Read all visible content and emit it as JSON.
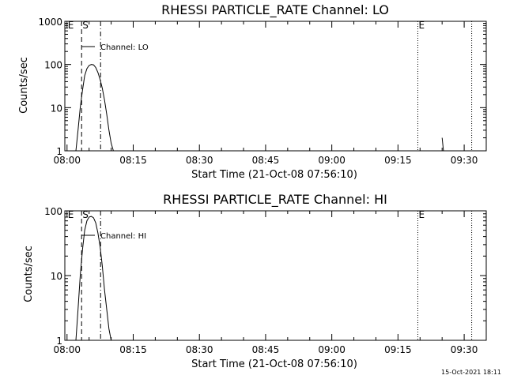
{
  "chart_data": [
    {
      "type": "line",
      "title": "RHESSI PARTICLE_RATE Channel: LO",
      "xlabel": "Start Time (21-Oct-08 07:56:10)",
      "ylabel": "Counts/sec",
      "yscale": "log",
      "ylim": [
        1,
        1000
      ],
      "y_ticks": [
        "1",
        "10",
        "100",
        "1000"
      ],
      "xlim_minutes": [
        -0.5,
        95.0
      ],
      "x_ticks": [
        {
          "label": "08:00",
          "minute": 0
        },
        {
          "label": "08:15",
          "minute": 15
        },
        {
          "label": "08:30",
          "minute": 30
        },
        {
          "label": "08:45",
          "minute": 45
        },
        {
          "label": "09:00",
          "minute": 60
        },
        {
          "label": "09:15",
          "minute": 75
        },
        {
          "label": "09:30",
          "minute": 90
        }
      ],
      "legend": {
        "label": "Channel: LO",
        "position": "top-left"
      },
      "markers": [
        {
          "label": "E",
          "minute": 0,
          "style": "solid"
        },
        {
          "label": "S",
          "minute": 3.3,
          "style": "dashed"
        },
        {
          "label": "",
          "minute": 7.6,
          "style": "dashdot"
        },
        {
          "label": "E",
          "minute": 79.5,
          "style": "dotted"
        },
        {
          "label": "",
          "minute": 91.7,
          "style": "dotted"
        }
      ],
      "series": [
        {
          "x": [
            2.0,
            2.5,
            3.0,
            3.5,
            4.0,
            4.5,
            5.0,
            5.5,
            6.0,
            6.5,
            7.0,
            7.5,
            8.0,
            8.5,
            9.0,
            9.5,
            10.0,
            10.5
          ],
          "y": [
            1,
            3,
            10,
            25,
            55,
            80,
            95,
            100,
            98,
            85,
            65,
            45,
            28,
            15,
            7,
            3,
            1.5,
            1
          ]
        },
        {
          "x": [
            85.0,
            85.3
          ],
          "y": [
            2,
            1
          ]
        }
      ]
    },
    {
      "type": "line",
      "title": "RHESSI PARTICLE_RATE Channel: HI",
      "xlabel": "Start Time (21-Oct-08 07:56:10)",
      "ylabel": "Counts/sec",
      "yscale": "log",
      "ylim": [
        1,
        100
      ],
      "y_ticks": [
        "1",
        "10",
        "100"
      ],
      "xlim_minutes": [
        -0.5,
        95.0
      ],
      "x_ticks": [
        {
          "label": "08:00",
          "minute": 0
        },
        {
          "label": "08:15",
          "minute": 15
        },
        {
          "label": "08:30",
          "minute": 30
        },
        {
          "label": "08:45",
          "minute": 45
        },
        {
          "label": "09:00",
          "minute": 60
        },
        {
          "label": "09:15",
          "minute": 75
        },
        {
          "label": "09:30",
          "minute": 90
        }
      ],
      "legend": {
        "label": "Channel: HI",
        "position": "top-left"
      },
      "markers": [
        {
          "label": "E",
          "minute": 0,
          "style": "solid"
        },
        {
          "label": "S",
          "minute": 3.3,
          "style": "dashed"
        },
        {
          "label": "",
          "minute": 7.6,
          "style": "dashdot"
        },
        {
          "label": "E",
          "minute": 79.5,
          "style": "dotted"
        },
        {
          "label": "",
          "minute": 91.7,
          "style": "dotted"
        }
      ],
      "series": [
        {
          "x": [
            2.0,
            2.5,
            3.0,
            3.5,
            4.0,
            4.5,
            5.0,
            5.5,
            6.0,
            6.5,
            7.0,
            7.5,
            8.0,
            8.5,
            9.0,
            9.5,
            10.0
          ],
          "y": [
            1,
            3,
            10,
            25,
            50,
            70,
            80,
            82,
            78,
            65,
            45,
            28,
            14,
            6,
            3,
            1.5,
            1
          ]
        }
      ]
    }
  ],
  "footer": {
    "timestamp": "15-Oct-2021 18:11"
  }
}
